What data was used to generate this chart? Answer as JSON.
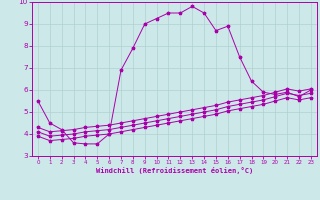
{
  "xlabel": "Windchill (Refroidissement éolien,°C)",
  "background_color": "#cde8e8",
  "grid_color": "#b0d0d0",
  "line_color": "#aa00aa",
  "xlim": [
    -0.5,
    23.5
  ],
  "ylim": [
    3,
    10
  ],
  "xticks": [
    0,
    1,
    2,
    3,
    4,
    5,
    6,
    7,
    8,
    9,
    10,
    11,
    12,
    13,
    14,
    15,
    16,
    17,
    18,
    19,
    20,
    21,
    22,
    23
  ],
  "yticks": [
    3,
    4,
    5,
    6,
    7,
    8,
    9,
    10
  ],
  "line1_x": [
    0,
    1,
    2,
    3,
    4,
    5,
    6,
    7,
    8,
    9,
    10,
    11,
    12,
    13,
    14,
    15,
    16,
    17,
    18,
    19,
    20,
    21,
    22,
    23
  ],
  "line1_y": [
    5.5,
    4.5,
    4.2,
    3.6,
    3.55,
    3.55,
    4.0,
    6.9,
    7.9,
    9.0,
    9.25,
    9.5,
    9.5,
    9.8,
    9.5,
    8.7,
    8.9,
    7.5,
    6.4,
    5.9,
    5.8,
    5.9,
    5.7,
    6.0
  ],
  "line2_x": [
    0,
    1,
    2,
    3,
    4,
    5,
    6,
    7,
    8,
    9,
    10,
    11,
    12,
    13,
    14,
    15,
    16,
    17,
    18,
    19,
    20,
    21,
    22,
    23
  ],
  "line2_y": [
    4.3,
    4.1,
    4.15,
    4.2,
    4.3,
    4.35,
    4.4,
    4.5,
    4.6,
    4.7,
    4.8,
    4.9,
    5.0,
    5.1,
    5.2,
    5.3,
    5.45,
    5.55,
    5.65,
    5.75,
    5.9,
    6.05,
    5.95,
    6.05
  ],
  "line3_x": [
    0,
    1,
    2,
    3,
    4,
    5,
    6,
    7,
    8,
    9,
    10,
    11,
    12,
    13,
    14,
    15,
    16,
    17,
    18,
    19,
    20,
    21,
    22,
    23
  ],
  "line3_y": [
    4.1,
    3.9,
    3.95,
    4.0,
    4.1,
    4.15,
    4.2,
    4.3,
    4.4,
    4.5,
    4.6,
    4.7,
    4.8,
    4.9,
    5.0,
    5.1,
    5.25,
    5.35,
    5.45,
    5.55,
    5.7,
    5.85,
    5.75,
    5.85
  ],
  "line4_x": [
    0,
    1,
    2,
    3,
    4,
    5,
    6,
    7,
    8,
    9,
    10,
    11,
    12,
    13,
    14,
    15,
    16,
    17,
    18,
    19,
    20,
    21,
    22,
    23
  ],
  "line4_y": [
    3.9,
    3.7,
    3.75,
    3.8,
    3.9,
    3.95,
    4.0,
    4.1,
    4.2,
    4.3,
    4.4,
    4.5,
    4.6,
    4.7,
    4.8,
    4.9,
    5.05,
    5.15,
    5.25,
    5.35,
    5.5,
    5.65,
    5.55,
    5.65
  ]
}
